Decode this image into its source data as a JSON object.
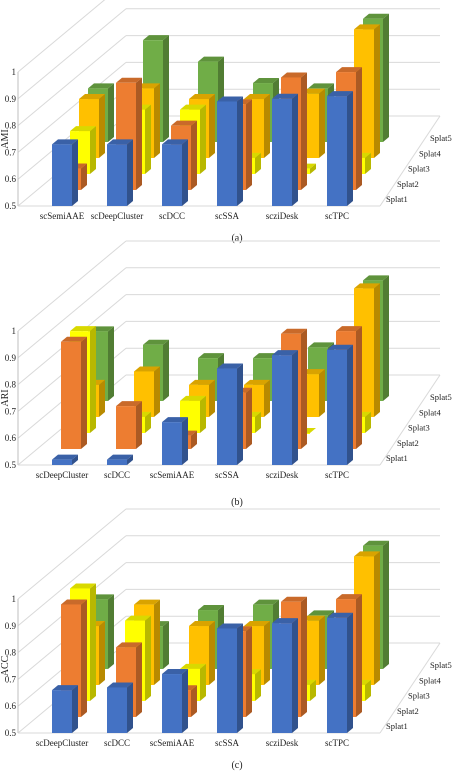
{
  "colors": {
    "Splat1": "#4472c4",
    "Splat2": "#ed7d31",
    "Splat3": "#ffff00",
    "Splat4": "#ffc000",
    "Splat5": "#70ad47",
    "grid": "#d9d9d9",
    "axis": "#bfbfbf"
  },
  "chart_data": [
    {
      "type": "bar",
      "caption": "(a)",
      "ylabel": "AMI",
      "ylim": [
        0.5,
        1.0
      ],
      "yticks": [
        "0.5",
        "0.6",
        "0.7",
        "0.8",
        "0.9",
        "1"
      ],
      "grid": true,
      "categories": [
        "scSemiAAE",
        "scDeepCluster",
        "scDCC",
        "scSSA",
        "scziDesk",
        "scTPC"
      ],
      "series": [
        {
          "name": "Splat1",
          "values": [
            0.73,
            0.73,
            0.73,
            0.89,
            0.9,
            0.91
          ]
        },
        {
          "name": "Splat2",
          "values": [
            0.58,
            0.9,
            0.74,
            0.82,
            0.92,
            0.94
          ]
        },
        {
          "name": "Splat3",
          "values": [
            0.66,
            0.74,
            0.74,
            0.56,
            0.52,
            0.56
          ]
        },
        {
          "name": "Splat4",
          "values": [
            0.72,
            0.76,
            0.72,
            0.72,
            0.74,
            0.98
          ]
        },
        {
          "name": "Splat5",
          "values": [
            0.7,
            0.88,
            0.8,
            0.72,
            0.7,
            0.96
          ]
        }
      ]
    },
    {
      "type": "bar",
      "caption": "(b)",
      "ylabel": "ARI",
      "ylim": [
        0.5,
        1.0
      ],
      "yticks": [
        "0.5",
        "0.6",
        "0.7",
        "0.8",
        "0.9",
        "1"
      ],
      "grid": true,
      "categories": [
        "scDeepCluster",
        "scDCC",
        "scSemiAAE",
        "scSSA",
        "scziDesk",
        "scTPC"
      ],
      "series": [
        {
          "name": "Splat1",
          "values": [
            0.52,
            0.52,
            0.66,
            0.86,
            0.91,
            0.93
          ]
        },
        {
          "name": "Splat2",
          "values": [
            0.9,
            0.66,
            0.55,
            0.71,
            0.93,
            0.94
          ]
        },
        {
          "name": "Splat3",
          "values": [
            0.88,
            0.56,
            0.62,
            0.56,
            0.5,
            0.56
          ]
        },
        {
          "name": "Splat4",
          "values": [
            0.62,
            0.67,
            0.62,
            0.62,
            0.66,
            0.98
          ]
        },
        {
          "name": "Splat5",
          "values": [
            0.76,
            0.71,
            0.66,
            0.66,
            0.7,
            0.95
          ]
        }
      ]
    },
    {
      "type": "bar",
      "caption": "(c)",
      "ylabel": "ACC",
      "ylim": [
        0.5,
        1.0
      ],
      "yticks": [
        "0.5",
        "0.6",
        "0.7",
        "0.8",
        "0.9",
        "1"
      ],
      "grid": true,
      "categories": [
        "scDeepCluster",
        "scDCC",
        "scSemiAAE",
        "scSSA",
        "scziDesk",
        "scTPC"
      ],
      "series": [
        {
          "name": "Splat1",
          "values": [
            0.66,
            0.67,
            0.72,
            0.89,
            0.91,
            0.93
          ]
        },
        {
          "name": "Splat2",
          "values": [
            0.92,
            0.76,
            0.6,
            0.82,
            0.93,
            0.94
          ]
        },
        {
          "name": "Splat3",
          "values": [
            0.92,
            0.8,
            0.62,
            0.6,
            0.56,
            0.56
          ]
        },
        {
          "name": "Splat4",
          "values": [
            0.72,
            0.8,
            0.72,
            0.72,
            0.74,
            0.98
          ]
        },
        {
          "name": "Splat5",
          "values": [
            0.76,
            0.66,
            0.72,
            0.74,
            0.7,
            0.96
          ]
        }
      ]
    }
  ]
}
